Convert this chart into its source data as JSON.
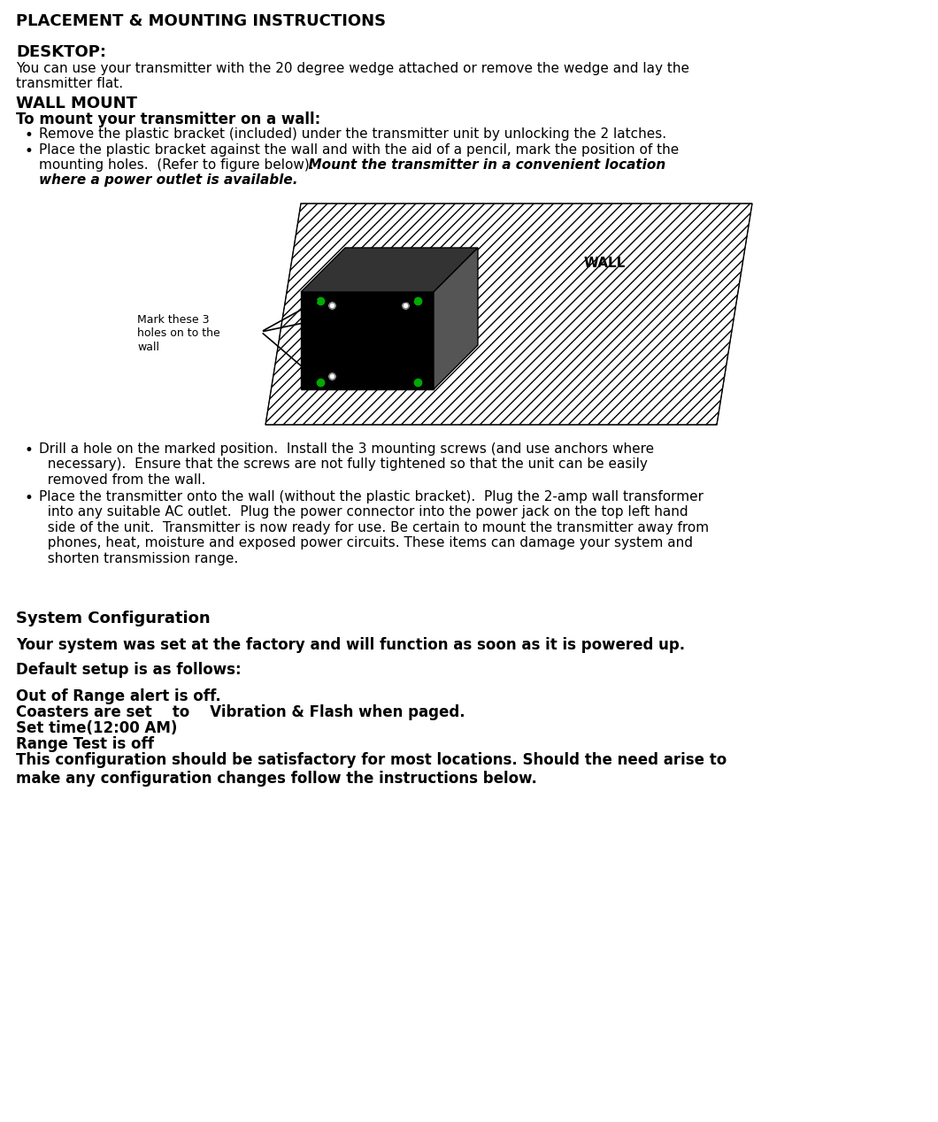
{
  "bg_color": "#ffffff",
  "title": "PLACEMENT & MOUNTING INSTRUCTIONS",
  "desktop_header": "DESKTOP:",
  "desktop_text": "You can use your transmitter with the 20 degree wedge attached or remove the wedge and lay the\ntransmitter flat.",
  "wall_mount_header": "WALL MOUNT",
  "wall_mount_subheader": "To mount your transmitter on a wall:",
  "bullet1": "Remove the plastic bracket (included) under the transmitter unit by unlocking the 2 latches.",
  "bullet2a": "Place the plastic bracket against the wall and with the aid of a pencil, mark the position of the\n    mounting holes.  (Refer to figure below).   ",
  "bullet2b": "Mount the transmitter in a convenient location\n    where a power outlet is available.",
  "bullet3": "Drill a hole on the marked position.  Install the 3 mounting screws (and use anchors where\n  necessary).  Ensure that the screws are not fully tightened so that the unit can be easily\n  removed from the wall.",
  "bullet4": "Place the transmitter onto the wall (without the plastic bracket).  Plug the 2-amp wall transformer\n  into any suitable AC outlet.  Plug the power connector into the power jack on the top left hand\n  side of the unit.  Transmitter is now ready for use. Be certain to mount the transmitter away from\n  phones, heat, moisture and exposed power circuits. These items can damage your system and\n  shorten transmission range.",
  "sys_config_header": "System Configuration",
  "sys_config_line1": "Your system was set at the factory and will function as soon as it is powered up.",
  "sys_config_line2": "Default setup is as follows:",
  "sys_config_line3": "Out of Range alert is off.",
  "sys_config_line4": "Coasters are set    to    Vibration & Flash when paged.",
  "sys_config_line5": "Set time(12:00 AM)",
  "sys_config_line6": "Range Test is off",
  "sys_config_line7": "This configuration should be satisfactory for most locations. Should the need arise to\nmake any configuration changes follow the instructions below."
}
